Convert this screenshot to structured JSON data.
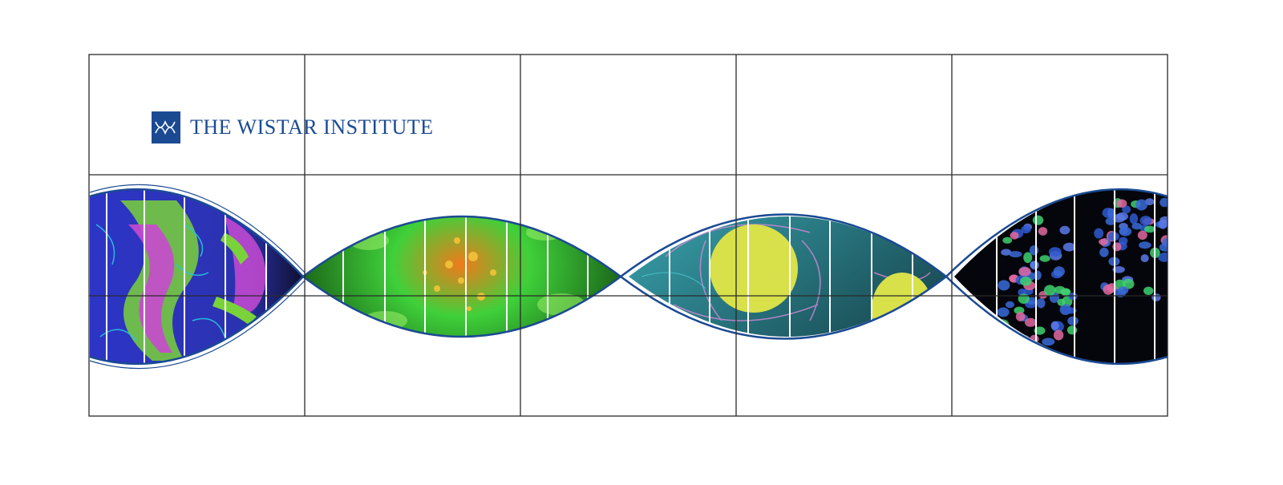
{
  "logo": {
    "text": "THE WISTAR INSTITUTE",
    "icon": "double-helix-icon",
    "color": "#1b4a93"
  },
  "panels": [
    {
      "name": "cell-panel-1",
      "palette": [
        "#3338c8",
        "#7ad23a",
        "#c84ad0",
        "#29c6e0"
      ]
    },
    {
      "name": "cell-panel-2",
      "palette": [
        "#1f8a1f",
        "#55d93a",
        "#f07a1a",
        "#0a1a05"
      ]
    },
    {
      "name": "cell-panel-3",
      "palette": [
        "#1e5a66",
        "#d98ad9",
        "#d8e04a",
        "#4fd8e0"
      ]
    },
    {
      "name": "cell-panel-4",
      "palette": [
        "#05060c",
        "#3a6ad8",
        "#e06aa0",
        "#40d070"
      ]
    }
  ],
  "colors": {
    "grid": "#2a2a2a",
    "helix_stroke": "#1b4a93"
  }
}
